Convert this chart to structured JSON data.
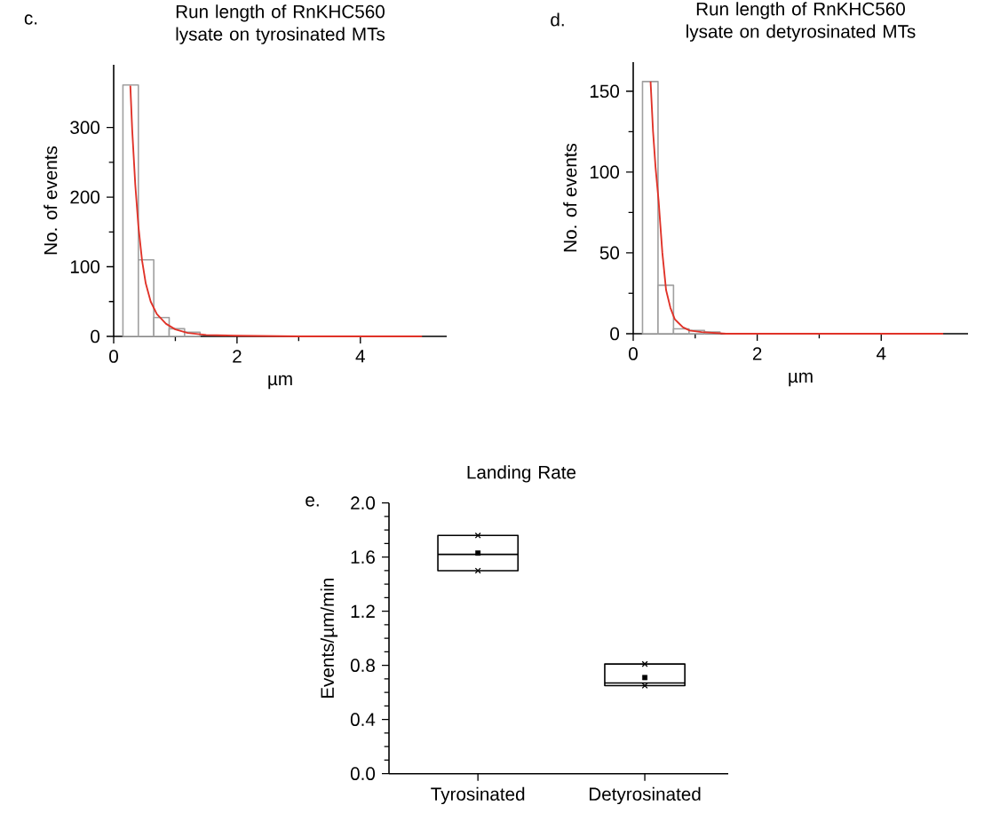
{
  "chart_data": [
    {
      "type": "histogram",
      "title": "Run length of RnKHC560 lysate on tyrosinated MTs",
      "xlabel": "µm",
      "ylabel": "No. of events",
      "annotations": [
        "c."
      ],
      "xlim": [
        0,
        5.4
      ],
      "ylim": [
        0,
        390
      ],
      "xticks": [
        0,
        2,
        4
      ],
      "yticks": [
        0,
        100,
        200,
        300
      ],
      "series": [
        {
          "type": "histogram",
          "color": "#a0a0a0",
          "bins": [
            0.15,
            0.4,
            0.65,
            0.9,
            1.15,
            1.4
          ],
          "values": [
            361,
            110,
            27,
            11,
            6
          ]
        },
        {
          "type": "line",
          "color": "#e03228",
          "x": [
            0.27,
            0.3,
            0.35,
            0.4,
            0.46,
            0.52,
            0.6,
            0.7,
            0.85,
            1.0,
            1.2,
            1.5,
            2,
            3,
            4,
            5
          ],
          "values": [
            360,
            297,
            218,
            159,
            109,
            76,
            50,
            32,
            18,
            10,
            5,
            2,
            1,
            0,
            0,
            0
          ]
        }
      ]
    },
    {
      "type": "histogram",
      "title": "Run length of RnKHC560 lysate on detyrosinated MTs",
      "xlabel": "µm",
      "ylabel": "No. of events",
      "annotations": [
        "d."
      ],
      "xlim": [
        0,
        5.4
      ],
      "ylim": [
        0,
        168
      ],
      "xticks": [
        0,
        2,
        4
      ],
      "yticks": [
        0,
        50,
        100,
        150
      ],
      "series": [
        {
          "type": "histogram",
          "color": "#a0a0a0",
          "bins": [
            0.15,
            0.4,
            0.65,
            0.9,
            1.15,
            1.4
          ],
          "values": [
            156,
            30,
            3,
            2,
            1
          ]
        },
        {
          "type": "line",
          "color": "#e03228",
          "x": [
            0.28,
            0.32,
            0.36,
            0.41,
            0.47,
            0.53,
            0.6,
            0.67,
            0.8,
            0.91,
            1.1,
            1.5,
            2,
            3,
            4,
            5
          ],
          "values": [
            156,
            125,
            103,
            82,
            50,
            27,
            16,
            9,
            4,
            2,
            1,
            0,
            0,
            0,
            0,
            0
          ]
        }
      ]
    },
    {
      "type": "box",
      "title": "Landing Rate",
      "ylabel": "Events/µm/min",
      "annotations": [
        "e."
      ],
      "categories": [
        "Tyrosinated",
        "Detyrosinated"
      ],
      "color": "#000000",
      "ylim": [
        0,
        2.0
      ],
      "yticks": [
        {
          "value": 0,
          "label": "0.0"
        },
        {
          "value": 0.4,
          "label": "0.4"
        },
        {
          "value": 0.8,
          "label": "0.8"
        },
        {
          "value": 1.2,
          "label": "1.2"
        },
        {
          "value": 1.6,
          "label": "1.6"
        },
        {
          "value": 2.0,
          "label": "2.0"
        }
      ],
      "boxes": [
        {
          "low": 1.5,
          "q1": 1.5,
          "median": 1.62,
          "q3": 1.76,
          "high": 1.76,
          "mean": 1.63,
          "outliers": [
            1.5,
            1.76
          ]
        },
        {
          "low": 0.65,
          "q1": 0.65,
          "median": 0.67,
          "q3": 0.81,
          "high": 0.81,
          "mean": 0.71,
          "outliers": [
            0.65,
            0.81
          ]
        }
      ]
    }
  ]
}
